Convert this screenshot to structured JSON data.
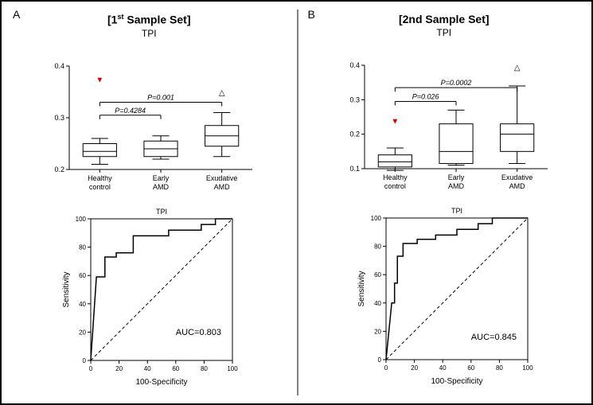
{
  "panelA": {
    "label": "A",
    "setTitle_pre": "[1",
    "setTitle_sup": "st",
    "setTitle_post": " Sample Set]",
    "subTitle": "TPI",
    "boxplot": {
      "type": "boxplot",
      "ylim": [
        0.2,
        0.4
      ],
      "yticks": [
        0.2,
        0.3,
        0.4
      ],
      "categories": [
        "Healthy\ncontrol",
        "Early\nAMD",
        "Exudative\nAMD"
      ],
      "boxes": [
        {
          "q1": 0.225,
          "median": 0.235,
          "q3": 0.25,
          "w_lo": 0.21,
          "w_hi": 0.26,
          "color": "#000"
        },
        {
          "q1": 0.225,
          "median": 0.24,
          "q3": 0.255,
          "w_lo": 0.22,
          "w_hi": 0.265,
          "color": "#000"
        },
        {
          "q1": 0.245,
          "median": 0.265,
          "q3": 0.285,
          "w_lo": 0.225,
          "w_hi": 0.31,
          "color": "#000"
        }
      ],
      "outliers": [
        {
          "group": 0,
          "y": 0.375,
          "marker": "▼",
          "color": "#d00000"
        },
        {
          "group": 2,
          "y": 0.35,
          "marker": "△",
          "color": "#000"
        }
      ],
      "pbars": [
        {
          "from": 0,
          "to": 1,
          "y": 0.305,
          "label": "P=0.4284"
        },
        {
          "from": 0,
          "to": 2,
          "y": 0.33,
          "label": "P=0.001"
        }
      ],
      "axis_color": "#000",
      "tick_fontsize": 9,
      "label_fontsize": 9,
      "pvalue_fontsize": 9,
      "background": "#fff"
    },
    "roc": {
      "type": "line",
      "title": "TPI",
      "title_fontsize": 9,
      "xlabel": "100-Specificity",
      "ylabel": "Sensitivity",
      "xlim": [
        0,
        100
      ],
      "ylim": [
        0,
        100
      ],
      "xticks": [
        0,
        20,
        40,
        60,
        80,
        100
      ],
      "yticks": [
        0,
        20,
        40,
        60,
        80,
        100
      ],
      "curve": [
        [
          0,
          0
        ],
        [
          4,
          59
        ],
        [
          10,
          59
        ],
        [
          10,
          73
        ],
        [
          18,
          73
        ],
        [
          18,
          76
        ],
        [
          30,
          76
        ],
        [
          30,
          88
        ],
        [
          55,
          88
        ],
        [
          55,
          92
        ],
        [
          78,
          92
        ],
        [
          78,
          96
        ],
        [
          88,
          96
        ],
        [
          88,
          100
        ],
        [
          100,
          100
        ]
      ],
      "diag": [
        [
          0,
          0
        ],
        [
          100,
          100
        ]
      ],
      "curve_color": "#000",
      "diag_color": "#000",
      "diag_dash": "4,3",
      "auc_label": "AUC=0.803",
      "auc_pos": [
        60,
        18
      ],
      "label_fontsize": 10,
      "tick_fontsize": 8,
      "background": "#fff"
    }
  },
  "panelB": {
    "label": "B",
    "setTitle": "[2nd Sample Set]",
    "subTitle": "TPI",
    "boxplot": {
      "type": "boxplot",
      "ylim": [
        0.1,
        0.4
      ],
      "yticks": [
        0.1,
        0.2,
        0.3,
        0.4
      ],
      "categories": [
        "Healthy\ncontrol",
        "Early\nAMD",
        "Exudative\nAMD"
      ],
      "boxes": [
        {
          "q1": 0.105,
          "median": 0.12,
          "q3": 0.14,
          "w_lo": 0.095,
          "w_hi": 0.16,
          "color": "#000"
        },
        {
          "q1": 0.115,
          "median": 0.15,
          "q3": 0.23,
          "w_lo": 0.11,
          "w_hi": 0.27,
          "color": "#000"
        },
        {
          "q1": 0.15,
          "median": 0.2,
          "q3": 0.23,
          "w_lo": 0.115,
          "w_hi": 0.34,
          "color": "#000"
        }
      ],
      "outliers": [
        {
          "group": 0,
          "y": 0.24,
          "marker": "▼",
          "color": "#d00000"
        },
        {
          "group": 2,
          "y": 0.395,
          "marker": "△",
          "color": "#000"
        }
      ],
      "pbars": [
        {
          "from": 0,
          "to": 1,
          "y": 0.295,
          "label": "P=0.026"
        },
        {
          "from": 0,
          "to": 2,
          "y": 0.335,
          "label": "P=0.0002"
        }
      ],
      "axis_color": "#000",
      "tick_fontsize": 9,
      "label_fontsize": 9,
      "pvalue_fontsize": 9,
      "background": "#fff"
    },
    "roc": {
      "type": "line",
      "title": "TPI",
      "title_fontsize": 9,
      "xlabel": "100-Specificity",
      "ylabel": "Sensitivity",
      "xlim": [
        0,
        100
      ],
      "ylim": [
        0,
        100
      ],
      "xticks": [
        0,
        20,
        40,
        60,
        80,
        100
      ],
      "yticks": [
        0,
        20,
        40,
        60,
        80,
        100
      ],
      "curve": [
        [
          0,
          0
        ],
        [
          4,
          40
        ],
        [
          6,
          40
        ],
        [
          6,
          54
        ],
        [
          8,
          54
        ],
        [
          8,
          73
        ],
        [
          12,
          73
        ],
        [
          12,
          82
        ],
        [
          22,
          82
        ],
        [
          22,
          85
        ],
        [
          35,
          85
        ],
        [
          35,
          88
        ],
        [
          50,
          88
        ],
        [
          50,
          92
        ],
        [
          65,
          92
        ],
        [
          65,
          96
        ],
        [
          75,
          96
        ],
        [
          75,
          100
        ],
        [
          100,
          100
        ]
      ],
      "diag": [
        [
          0,
          0
        ],
        [
          100,
          100
        ]
      ],
      "curve_color": "#000",
      "diag_color": "#000",
      "diag_dash": "4,3",
      "auc_label": "AUC=0.845",
      "auc_pos": [
        60,
        14
      ],
      "label_fontsize": 10,
      "tick_fontsize": 8,
      "background": "#fff"
    }
  }
}
